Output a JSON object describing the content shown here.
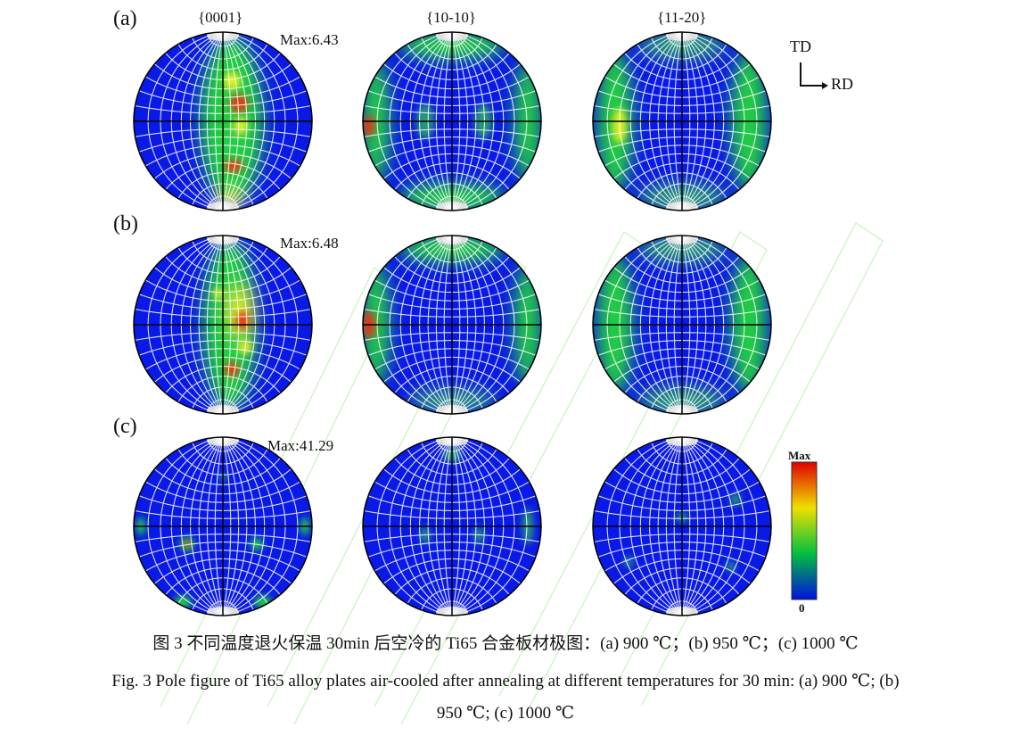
{
  "figure": {
    "column_headers": [
      "{0001}",
      "{10-10}",
      "{11-20}"
    ],
    "rows": [
      {
        "label": "(a)",
        "max_label": "Max:6.43"
      },
      {
        "label": "(b)",
        "max_label": "Max:6.48"
      },
      {
        "label": "(c)",
        "max_label": "Max:41.29"
      }
    ],
    "axes": {
      "td": "TD",
      "rd": "RD"
    },
    "colorbar": {
      "top_label": "Max",
      "bottom_label": "0",
      "colors": [
        "#0010e0",
        "#00c040",
        "#f0e000",
        "#e00000"
      ]
    },
    "background_color": "#0a1ae6"
  },
  "caption": {
    "zh": "图 3  不同温度退火保温 30min 后空冷的 Ti65 合金板材极图：(a) 900 ℃；(b) 950 ℃；(c) 1000 ℃",
    "en_line1": "Fig. 3 Pole figure of Ti65 alloy plates air-cooled after annealing at different temperatures for 30 min: (a) 900  ℃; (b)",
    "en_line2": "950  ℃; (c) 1000  ℃"
  }
}
